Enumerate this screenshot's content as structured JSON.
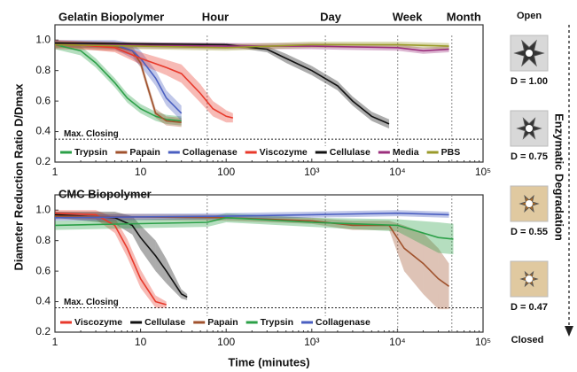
{
  "chart_data": [
    {
      "type": "line",
      "title": "Gelatin Biopolymer",
      "ylabel": "Diameter Reduction Ratio D/Dmax",
      "xscale": "log",
      "xlim": [
        1,
        100000
      ],
      "ylim": [
        0.2,
        1.1
      ],
      "xticks": [
        1,
        10,
        100,
        {
          "value": 1000,
          "label": "10³"
        },
        {
          "value": 10000,
          "label": "10⁴"
        },
        {
          "value": 100000,
          "label": "10⁵"
        }
      ],
      "yticks": [
        0.2,
        0.4,
        0.6,
        0.8,
        {
          "value": 1,
          "label": "1.0"
        }
      ],
      "annotations": [
        {
          "x": 60,
          "label": "Hour"
        },
        {
          "x": 1440,
          "label": "Day"
        },
        {
          "x": 10080,
          "label": "Week"
        },
        {
          "x": 43200,
          "label": "Month"
        }
      ],
      "max_closing": {
        "label": "Max. Closing",
        "value": 0.35
      },
      "legend": "lower left",
      "series": [
        {
          "name": "Trypsin",
          "color": "#2ca048",
          "x": [
            1,
            2,
            3,
            5,
            7,
            10,
            15,
            20,
            30
          ],
          "values": [
            0.97,
            0.93,
            0.85,
            0.72,
            0.62,
            0.55,
            0.5,
            0.48,
            0.47
          ],
          "errors": [
            0.03,
            0.03,
            0.03,
            0.03,
            0.03,
            0.03,
            0.03,
            0.03,
            0.03
          ]
        },
        {
          "name": "Papain",
          "color": "#a0522d",
          "x": [
            1,
            5,
            8,
            10,
            12,
            15,
            20,
            30
          ],
          "values": [
            0.97,
            0.96,
            0.93,
            0.85,
            0.7,
            0.52,
            0.47,
            0.46
          ],
          "errors": [
            0.03,
            0.03,
            0.03,
            0.03,
            0.03,
            0.03,
            0.03,
            0.03
          ]
        },
        {
          "name": "Collagenase",
          "color": "#4a5fc1",
          "x": [
            1,
            5,
            8,
            10,
            15,
            20,
            30
          ],
          "values": [
            0.98,
            0.97,
            0.93,
            0.88,
            0.75,
            0.62,
            0.52
          ],
          "errors": [
            0.02,
            0.03,
            0.05,
            0.05,
            0.05,
            0.05,
            0.05
          ]
        },
        {
          "name": "Viscozyme",
          "color": "#e8392b",
          "x": [
            1,
            5,
            10,
            20,
            30,
            50,
            70,
            100,
            120
          ],
          "values": [
            0.98,
            0.95,
            0.88,
            0.82,
            0.78,
            0.65,
            0.55,
            0.5,
            0.49
          ],
          "errors": [
            0.02,
            0.03,
            0.04,
            0.05,
            0.06,
            0.06,
            0.05,
            0.04,
            0.03
          ]
        },
        {
          "name": "Cellulase",
          "color": "#111111",
          "x": [
            1,
            100,
            300,
            500,
            1000,
            2000,
            3000,
            5000,
            8000
          ],
          "values": [
            0.98,
            0.97,
            0.94,
            0.88,
            0.8,
            0.7,
            0.6,
            0.5,
            0.45
          ],
          "errors": [
            0.01,
            0.01,
            0.02,
            0.03,
            0.03,
            0.03,
            0.03,
            0.03,
            0.03
          ]
        },
        {
          "name": "Media",
          "color": "#9b2f7c",
          "x": [
            1,
            100,
            1000,
            10000,
            20000,
            40000
          ],
          "values": [
            0.97,
            0.96,
            0.96,
            0.95,
            0.93,
            0.94
          ],
          "errors": [
            0.02,
            0.02,
            0.02,
            0.02,
            0.02,
            0.02
          ]
        },
        {
          "name": "PBS",
          "color": "#9a9a2a",
          "x": [
            1,
            100,
            1000,
            10000,
            40000
          ],
          "values": [
            0.97,
            0.95,
            0.97,
            0.97,
            0.96
          ],
          "errors": [
            0.02,
            0.02,
            0.02,
            0.02,
            0.02
          ]
        }
      ]
    },
    {
      "type": "line",
      "title": "CMC Biopolymer",
      "xlabel": "Time (minutes)",
      "xscale": "log",
      "xlim": [
        1,
        100000
      ],
      "ylim": [
        0.2,
        1.1
      ],
      "xticks": [
        1,
        10,
        100,
        {
          "value": 1000,
          "label": "10³"
        },
        {
          "value": 10000,
          "label": "10⁴"
        },
        {
          "value": 100000,
          "label": "10⁵"
        }
      ],
      "yticks": [
        0.2,
        0.4,
        0.6,
        0.8,
        {
          "value": 1,
          "label": "1.0"
        }
      ],
      "vlines": [
        60,
        1440,
        10080,
        43200
      ],
      "max_closing": {
        "label": "Max. Closing",
        "value": 0.36
      },
      "legend": "lower left",
      "series": [
        {
          "name": "Viscozyme",
          "color": "#e8392b",
          "x": [
            1,
            3,
            5,
            7,
            10,
            15,
            20
          ],
          "values": [
            0.98,
            0.97,
            0.9,
            0.75,
            0.55,
            0.4,
            0.38
          ],
          "errors": [
            0.02,
            0.03,
            0.05,
            0.06,
            0.06,
            0.04,
            0.02
          ]
        },
        {
          "name": "Cellulase",
          "color": "#111111",
          "x": [
            1,
            5,
            8,
            10,
            15,
            20,
            30,
            35
          ],
          "values": [
            0.97,
            0.95,
            0.9,
            0.82,
            0.7,
            0.6,
            0.45,
            0.43
          ],
          "errors": [
            0.02,
            0.04,
            0.06,
            0.08,
            0.1,
            0.08,
            0.03,
            0.02
          ]
        },
        {
          "name": "Papain",
          "color": "#a0522d",
          "x": [
            1,
            100,
            1000,
            3000,
            8000,
            12000,
            20000,
            30000,
            40000
          ],
          "values": [
            0.96,
            0.95,
            0.93,
            0.9,
            0.9,
            0.75,
            0.65,
            0.55,
            0.5
          ],
          "errors": [
            0.02,
            0.02,
            0.02,
            0.03,
            0.03,
            0.15,
            0.2,
            0.2,
            0.15
          ]
        },
        {
          "name": "Trypsin",
          "color": "#2ca048",
          "x": [
            1,
            60,
            100,
            1000,
            10000,
            30000,
            45000
          ],
          "values": [
            0.9,
            0.92,
            0.95,
            0.92,
            0.9,
            0.82,
            0.81
          ],
          "errors": [
            0.03,
            0.03,
            0.03,
            0.03,
            0.04,
            0.1,
            0.1
          ]
        },
        {
          "name": "Collagenase",
          "color": "#4a5fc1",
          "x": [
            1,
            100,
            1000,
            10000,
            40000
          ],
          "values": [
            0.95,
            0.96,
            0.97,
            0.98,
            0.97
          ],
          "errors": [
            0.02,
            0.02,
            0.02,
            0.02,
            0.02
          ]
        }
      ]
    }
  ],
  "side_panel": {
    "top_label": "Open",
    "bottom_label": "Closed",
    "arrow_label": "Enzymatic Degradation",
    "states": [
      "D = 1.00",
      "D = 0.75",
      "D = 0.55",
      "D = 0.47"
    ]
  }
}
